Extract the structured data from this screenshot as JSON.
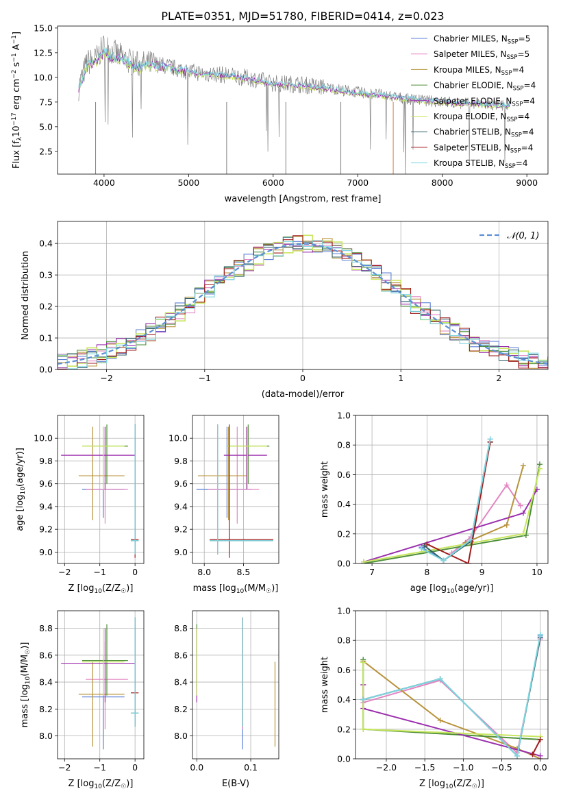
{
  "figure": {
    "title": "PLATE=0351, MJD=51780, FIBERID=0414, z=0.023"
  },
  "colors": {
    "Chabrier MILES": "#5b7fd6",
    "Salpeter MILES": "#e386c1",
    "Kroupa MILES": "#b8923a",
    "Chabrier ELODIE": "#4f8f3a",
    "Salpeter ELODIE": "#9b2fae",
    "Kroupa ELODIE": "#c7e65e",
    "Chabrier STELIB": "#2f5f6a",
    "Salpeter STELIB": "#a01c1c",
    "Kroupa STELIB": "#7fd6df",
    "data": "#808080",
    "orange": "#e07b27",
    "normal": "#5b8fd6"
  },
  "chart_data": [
    {
      "id": "spectrum",
      "type": "line",
      "title": "PLATE=0351, MJD=51780, FIBERID=0414, z=0.023",
      "xlabel": "wavelength [Angstrom, rest frame]",
      "ylabel": "Flux [f_λ 10^-17 erg cm^-2 s^-1 A^-1]",
      "xlim": [
        3450,
        9250
      ],
      "ylim": [
        0.2,
        15.2
      ],
      "xticks": [
        4000,
        5000,
        6000,
        7000,
        8000,
        9000
      ],
      "yticks": [
        2.5,
        5.0,
        7.5,
        10.0,
        12.5,
        15.0
      ],
      "legend_position": "top-right",
      "legend": [
        {
          "name": "Chabrier MILES",
          "nssp": "5"
        },
        {
          "name": "Salpeter MILES",
          "nssp": "5"
        },
        {
          "name": "Kroupa MILES",
          "nssp": "4"
        },
        {
          "name": "Chabrier ELODIE",
          "nssp": "4"
        },
        {
          "name": "Salpeter ELODIE",
          "nssp": "4"
        },
        {
          "name": "Kroupa ELODIE",
          "nssp": "4"
        },
        {
          "name": "Chabrier STELIB",
          "nssp": "4"
        },
        {
          "name": "Salpeter STELIB",
          "nssp": "4"
        },
        {
          "name": "Kroupa STELIB",
          "nssp": "4"
        }
      ],
      "data_x": [
        3700,
        3800,
        3900,
        4000,
        4100,
        4200,
        4300,
        4400,
        4600,
        4800,
        5000,
        5200,
        5500,
        5800,
        6000,
        6300,
        6600,
        7000,
        7300,
        7600,
        8000,
        8400,
        8800
      ],
      "data_y": [
        9.0,
        11.5,
        11.8,
        13.2,
        12.6,
        12.1,
        11.6,
        11.3,
        11.4,
        11.0,
        10.6,
        10.4,
        10.2,
        9.8,
        9.4,
        9.3,
        9.0,
        8.5,
        8.2,
        7.8,
        7.5,
        7.3,
        7.1
      ],
      "model_y": [
        8.9,
        11.2,
        11.6,
        12.5,
        12.0,
        11.8,
        11.3,
        11.0,
        11.2,
        10.9,
        10.5,
        10.3,
        10.1,
        9.7,
        9.3,
        9.2,
        8.9,
        8.4,
        8.1,
        7.8,
        7.5,
        7.3,
        7.1
      ]
    },
    {
      "id": "residuals",
      "type": "line",
      "xlabel": "(data-model)/error",
      "ylabel": "Normed distribution",
      "xlim": [
        -2.5,
        2.5
      ],
      "ylim": [
        0,
        0.47
      ],
      "xticks": [
        -2,
        -1,
        0,
        1,
        2
      ],
      "yticks": [
        0.0,
        0.1,
        0.2,
        0.3,
        0.4
      ],
      "grid": true,
      "legend": [
        {
          "name": "𝒩(0, 1)"
        }
      ],
      "legend_position": "top-right",
      "bin_width": 0.1
    },
    {
      "id": "age_vs_Z",
      "type": "scatter",
      "xlabel": "Z [log10(Z/Z☉)]",
      "ylabel": "age  [log10(age/yr)]",
      "xlim": [
        -2.2,
        0.25
      ],
      "ylim": [
        8.9,
        10.2
      ],
      "xticks": [
        -2,
        -1,
        0
      ],
      "yticks": [
        9.0,
        9.2,
        9.4,
        9.6,
        9.8,
        10.0
      ],
      "grid": true
    },
    {
      "id": "age_vs_mass",
      "type": "scatter",
      "xlabel": "mass [log10(M/M☉)]",
      "xlim": [
        7.85,
        8.95
      ],
      "ylim": [
        8.9,
        10.2
      ],
      "xticks": [
        8.0,
        8.5
      ],
      "yticks": [
        9.0,
        9.2,
        9.4,
        9.6,
        9.8,
        10.0
      ],
      "grid": true
    },
    {
      "id": "weight_vs_age",
      "type": "line",
      "xlabel": "age  [log10(age/yr)]",
      "ylabel": "mass weight",
      "xlim": [
        6.7,
        10.2
      ],
      "ylim": [
        0,
        1.0
      ],
      "xticks": [
        7,
        8,
        9,
        10
      ],
      "yticks": [
        0.0,
        0.2,
        0.4,
        0.6,
        0.8,
        1.0
      ],
      "grid": true,
      "series": [
        {
          "name": "Chabrier MILES",
          "x": [
            7.9,
            8.3,
            8.8,
            9.15
          ],
          "y": [
            0.11,
            0.02,
            0.16,
            0.84
          ]
        },
        {
          "name": "Salpeter MILES",
          "x": [
            8.45,
            8.8,
            9.45,
            9.7
          ],
          "y": [
            0.07,
            0.18,
            0.53,
            0.39
          ]
        },
        {
          "name": "Kroupa MILES",
          "x": [
            8.7,
            9.45,
            9.75
          ],
          "y": [
            0.14,
            0.26,
            0.66
          ]
        },
        {
          "name": "Chabrier ELODIE",
          "x": [
            6.85,
            9.8,
            10.05
          ],
          "y": [
            0.0,
            0.19,
            0.67
          ]
        },
        {
          "name": "Salpeter ELODIE",
          "x": [
            6.85,
            9.75,
            10.0
          ],
          "y": [
            0.01,
            0.34,
            0.5
          ]
        },
        {
          "name": "Kroupa ELODIE",
          "x": [
            6.85,
            9.75,
            10.05
          ],
          "y": [
            0.01,
            0.2,
            0.64
          ]
        },
        {
          "name": "Chabrier STELIB",
          "x": [
            7.95,
            8.3,
            8.8,
            9.15
          ],
          "y": [
            0.12,
            0.02,
            0.15,
            0.82
          ]
        },
        {
          "name": "Salpeter STELIB",
          "x": [
            8.0,
            8.75,
            9.15
          ],
          "y": [
            0.13,
            0.0,
            0.82
          ]
        },
        {
          "name": "Kroupa STELIB",
          "x": [
            7.9,
            8.3,
            8.8,
            9.15
          ],
          "y": [
            0.1,
            0.02,
            0.16,
            0.84
          ]
        }
      ]
    },
    {
      "id": "mass_vs_Z",
      "type": "scatter",
      "xlabel": "Z [log10(Z/Z☉)]",
      "ylabel": "mass [log10(M/M☉)]",
      "xlim": [
        -2.2,
        0.25
      ],
      "ylim": [
        7.83,
        8.93
      ],
      "xticks": [
        -2,
        -1,
        0
      ],
      "yticks": [
        8.0,
        8.2,
        8.4,
        8.6,
        8.8
      ],
      "grid": true
    },
    {
      "id": "mass_vs_ebv",
      "type": "scatter",
      "xlabel": "E(B-V)",
      "xlim": [
        -0.008,
        0.152
      ],
      "ylim": [
        7.83,
        8.93
      ],
      "xticks": [
        0.0,
        0.1
      ],
      "yticks": [
        8.0,
        8.2,
        8.4,
        8.6,
        8.8
      ],
      "grid": true
    },
    {
      "id": "weight_vs_Z",
      "type": "line",
      "xlabel": "Z [log10(Z/Z☉)]",
      "ylabel": "mass weight",
      "xlim": [
        -2.4,
        0.1
      ],
      "ylim": [
        0,
        1.0
      ],
      "xticks": [
        -2.0,
        -1.5,
        -1.0,
        -0.5,
        0.0
      ],
      "yticks": [
        0.0,
        0.2,
        0.4,
        0.6,
        0.8,
        1.0
      ],
      "grid": true,
      "series": [
        {
          "name": "Chabrier MILES",
          "x": [
            -2.3,
            -1.3,
            -0.3,
            0.0
          ],
          "y": [
            0.4,
            0.54,
            0.02,
            0.83
          ]
        },
        {
          "name": "Salpeter MILES",
          "x": [
            -2.3,
            -1.3,
            -0.3,
            0.0
          ],
          "y": [
            0.38,
            0.53,
            0.04,
            0.81
          ]
        },
        {
          "name": "Kroupa MILES",
          "x": [
            -2.3,
            -1.3,
            -0.3,
            0.0
          ],
          "y": [
            0.66,
            0.26,
            0.07,
            0.0
          ]
        },
        {
          "name": "Chabrier ELODIE",
          "x": [
            -2.3,
            -2.3,
            0.0
          ],
          "y": [
            0.67,
            0.2,
            0.13
          ]
        },
        {
          "name": "Salpeter ELODIE",
          "x": [
            -2.3,
            -2.3,
            0.0
          ],
          "y": [
            0.5,
            0.34,
            0.02
          ]
        },
        {
          "name": "Kroupa ELODIE",
          "x": [
            -2.3,
            -2.3,
            0.0
          ],
          "y": [
            0.65,
            0.2,
            0.15
          ]
        },
        {
          "name": "Chabrier STELIB",
          "x": [
            -2.3,
            -1.3,
            -0.3,
            0.0
          ],
          "y": [
            0.4,
            0.54,
            0.02,
            0.82
          ]
        },
        {
          "name": "Salpeter STELIB",
          "x": [
            -0.1,
            0.0
          ],
          "y": [
            0.03,
            0.13
          ]
        },
        {
          "name": "Kroupa STELIB",
          "x": [
            -2.3,
            -1.3,
            -0.3,
            0.0
          ],
          "y": [
            0.4,
            0.54,
            0.02,
            0.84
          ]
        }
      ]
    },
    {
      "id": "crosses",
      "type": "scatter",
      "note_series": [
        {
          "name": "Chabrier MILES",
          "Z": -0.9,
          "Zerr": [
            -1.5,
            -0.3
          ],
          "age": 9.55,
          "ageerr": [
            9.3,
            10.1
          ],
          "mass": 8.29,
          "masserr": [
            7.9,
            8.6
          ],
          "ebv": 0.085
        },
        {
          "name": "Salpeter MILES",
          "Z": -0.85,
          "Zerr": [
            -1.4,
            -0.2
          ],
          "age": 9.55,
          "ageerr": [
            9.25,
            10.1
          ],
          "mass": 8.42,
          "masserr": [
            8.05,
            8.7
          ],
          "ebv": 0.085
        },
        {
          "name": "Kroupa MILES",
          "Z": -1.2,
          "Zerr": [
            -1.6,
            -0.3
          ],
          "age": 9.67,
          "ageerr": [
            9.28,
            10.1
          ],
          "mass": 8.31,
          "masserr": [
            7.92,
            8.55
          ],
          "ebv": 0.145
        },
        {
          "name": "Chabrier ELODIE",
          "Z": -0.8,
          "Zerr": [
            -1.5,
            -0.2
          ],
          "age": 9.93,
          "ageerr": [
            9.6,
            10.12
          ],
          "mass": 8.56,
          "masserr": [
            8.3,
            8.83
          ],
          "ebv": 0.0
        },
        {
          "name": "Salpeter ELODIE",
          "Z": -0.85,
          "Zerr": [
            -2.1,
            0.0
          ],
          "age": 9.85,
          "ageerr": [
            9.55,
            10.1
          ],
          "mass": 8.54,
          "masserr": [
            8.25,
            8.8
          ],
          "ebv": 0.0
        },
        {
          "name": "Kroupa ELODIE",
          "Z": -0.9,
          "Zerr": [
            -1.5,
            -0.3
          ],
          "age": 9.93,
          "ageerr": [
            9.55,
            10.1
          ],
          "mass": 8.55,
          "masserr": [
            8.3,
            8.8
          ],
          "ebv": 0.0
        },
        {
          "name": "Chabrier STELIB",
          "Z": 0.0,
          "Zerr": [
            -0.12,
            0.1
          ],
          "age": 9.1,
          "ageerr": [
            8.98,
            10.12
          ],
          "mass": 8.17,
          "masserr": [
            8.07,
            8.88
          ],
          "ebv": 0.085
        },
        {
          "name": "Salpeter STELIB",
          "Z": 0.0,
          "Zerr": [
            -0.12,
            0.1
          ],
          "age": 9.11,
          "ageerr": [
            8.95,
            10.12
          ],
          "mass": 8.32,
          "masserr": [
            8.07,
            8.88
          ],
          "ebv": 0.085
        },
        {
          "name": "Kroupa STELIB",
          "Z": 0.0,
          "Zerr": [
            -0.12,
            0.1
          ],
          "age": 9.1,
          "ageerr": [
            8.98,
            10.12
          ],
          "mass": 8.17,
          "masserr": [
            8.07,
            8.88
          ],
          "ebv": 0.085
        }
      ]
    }
  ]
}
